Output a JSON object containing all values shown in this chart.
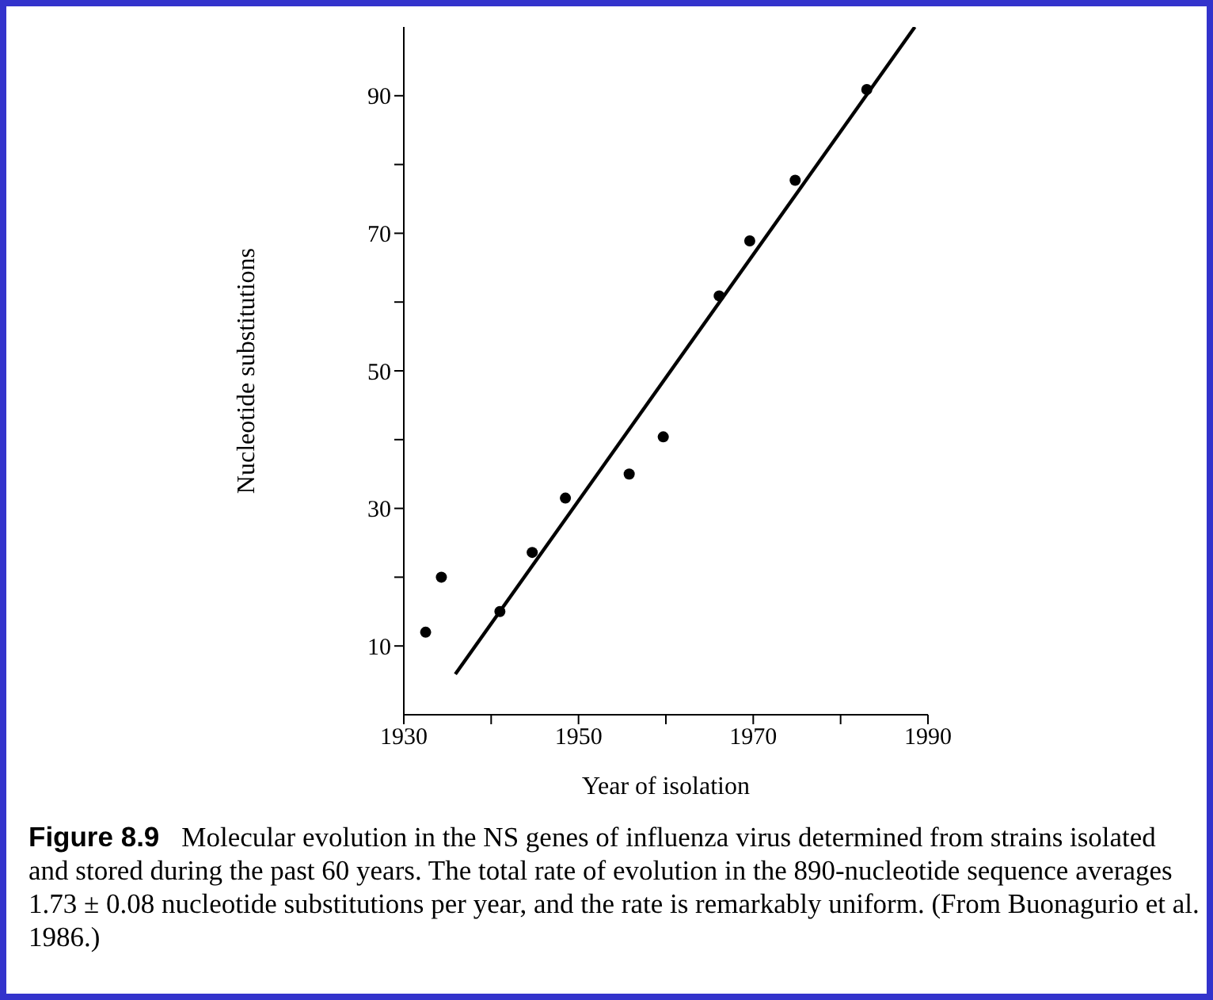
{
  "chart_data": {
    "type": "scatter",
    "xlabel": "Year of isolation",
    "ylabel": "Nucleotide substitutions",
    "xlim": [
      1930,
      1990
    ],
    "xticks": [
      1930,
      {
        "value": 1940,
        "label": null
      },
      1950,
      {
        "value": 1960,
        "label": null
      },
      1970,
      {
        "value": 1980,
        "label": null
      },
      1990
    ],
    "ylim": [
      0,
      100
    ],
    "yticks": [
      10,
      {
        "value": 20,
        "label": null
      },
      30,
      {
        "value": 40,
        "label": null
      },
      50,
      {
        "value": 60,
        "label": null
      },
      70,
      {
        "value": 80,
        "label": null
      },
      90
    ],
    "grid": false,
    "marker": "circle",
    "series": [
      {
        "color": "#000000",
        "x": [
          1932.5,
          1934.3,
          1941,
          1944.7,
          1948.5,
          1955.8,
          1959.7,
          1966.1,
          1969.6,
          1974.8,
          1983
        ],
        "values": [
          12,
          20,
          15,
          23.6,
          31.5,
          35,
          40.4,
          60.9,
          68.9,
          77.7,
          90.9
        ]
      },
      {
        "type": "line",
        "color": "#000000",
        "line_style": "solid",
        "marker": "none",
        "x": [
          1935.9,
          1988.5
        ],
        "values": [
          5.9,
          100
        ]
      }
    ],
    "annotations": [
      "Figure 8.9",
      "Molecular evolution in the NS genes of influenza virus determined from strains isolated and stored during the past 60 years. The total rate of evolution in the 890-nucleotide sequence averages 1.73 ± 0.08 nucleotide substitutions per year, and the rate is remarkably uniform. (From Buonagurio et al. 1986.)"
    ]
  }
}
